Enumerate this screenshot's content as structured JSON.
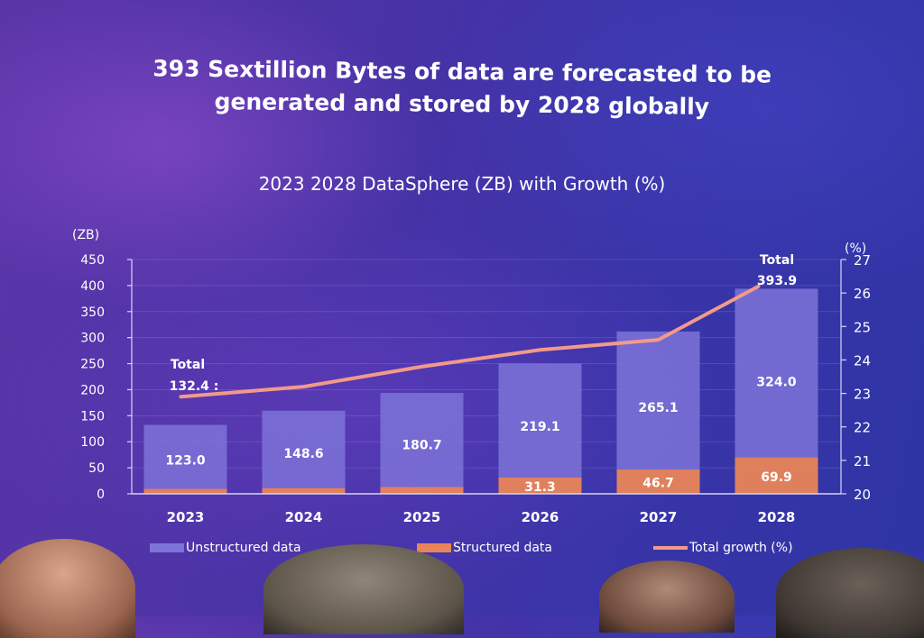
{
  "slide": {
    "headline_line1": "393 Sextillion Bytes of data are forecasted to be",
    "headline_line2": "generated and stored by 2028 globally"
  },
  "chart_data": {
    "type": "bar",
    "stacked": true,
    "title": "2023 2028 DataSphere (ZB) with Growth (%)",
    "categories": [
      "2023",
      "2024",
      "2025",
      "2026",
      "2027",
      "2028"
    ],
    "series": [
      {
        "name": "Structured data",
        "kind": "bar",
        "axis": "left",
        "color": "#e98558",
        "values": [
          9.4,
          11.0,
          13.0,
          31.3,
          46.7,
          69.9
        ],
        "labels": [
          "",
          "",
          "",
          "31.3",
          "46.7",
          "69.9"
        ]
      },
      {
        "name": "Unstructured data",
        "kind": "bar",
        "axis": "left",
        "color": "#7d73d8",
        "values": [
          123.0,
          148.6,
          180.7,
          219.1,
          265.1,
          324.0
        ],
        "labels": [
          "123.0",
          "148.6",
          "180.7",
          "219.1",
          "265.1",
          "324.0"
        ]
      },
      {
        "name": "Total growth (%)",
        "kind": "line",
        "axis": "right",
        "color": "#f29a8a",
        "values": [
          22.9,
          23.2,
          23.8,
          24.3,
          24.6,
          26.2
        ]
      }
    ],
    "annotations": [
      {
        "category": "2023",
        "label": "Total",
        "value": "132.4 :"
      },
      {
        "category": "2028",
        "label": "Total",
        "value": "393.9"
      }
    ],
    "yleft": {
      "label": "(ZB)",
      "min": 0,
      "max": 450,
      "ticks": [
        0,
        50,
        100,
        150,
        200,
        250,
        300,
        350,
        400,
        450
      ]
    },
    "yright": {
      "label": "(%)",
      "min": 20,
      "max": 27,
      "ticks": [
        20,
        21,
        22,
        23,
        24,
        25,
        26,
        27
      ]
    },
    "grid": true,
    "legend_position": "bottom"
  }
}
